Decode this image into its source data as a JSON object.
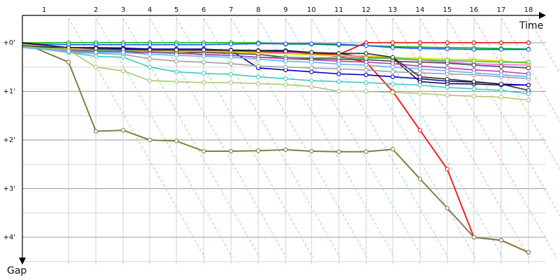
{
  "chart_data": {
    "type": "line",
    "xlabel": "Time",
    "ylabel": "Gap",
    "x_ticks": [
      "1",
      "2",
      "3",
      "4",
      "5",
      "6",
      "7",
      "8",
      "9",
      "10",
      "11",
      "12",
      "13",
      "14",
      "15",
      "16",
      "17",
      "18"
    ],
    "y_ticks": [
      "+0'",
      "+1'",
      "+2'",
      "+3'",
      "+4'"
    ],
    "grid": true,
    "legend": "none",
    "series": [
      {
        "color": "#e00000",
        "values": [
          0.0,
          0.15,
          0.18,
          0.18,
          0.18,
          0.18,
          0.18,
          0.18,
          0.18,
          0.2,
          0.22,
          0.24,
          0.0,
          0.0,
          0.0,
          0.0,
          0.0,
          0.0,
          0.0
        ]
      },
      {
        "color": "#ee2222",
        "values": [
          0.02,
          0.14,
          0.14,
          0.16,
          0.17,
          0.18,
          0.18,
          0.19,
          0.2,
          0.2,
          0.22,
          0.28,
          0.4,
          1.0,
          1.8,
          2.6,
          4.0,
          4.06,
          4.31
        ]
      },
      {
        "color": "#808040",
        "values": [
          0.0,
          0.4,
          1.82,
          1.8,
          2.0,
          2.02,
          2.23,
          2.23,
          2.22,
          2.2,
          2.23,
          2.24,
          2.24,
          2.19,
          2.8,
          3.4,
          4.0,
          4.06,
          4.31
        ]
      },
      {
        "color": "#00b000",
        "values": [
          0.0,
          0.0,
          0.0,
          0.0,
          0.0,
          0.0,
          0.0,
          0.0,
          0.0,
          0.03,
          0.03,
          0.05,
          0.06,
          0.08,
          0.09,
          0.1,
          0.11,
          0.12,
          0.13
        ]
      },
      {
        "color": "#1060ff",
        "values": [
          0.02,
          0.04,
          0.04,
          0.04,
          0.04,
          0.04,
          0.04,
          0.03,
          0.02,
          0.02,
          0.02,
          0.03,
          0.06,
          0.1,
          0.12,
          0.13,
          0.14,
          0.14,
          0.14
        ]
      },
      {
        "color": "#101040",
        "values": [
          0.0,
          0.1,
          0.1,
          0.11,
          0.13,
          0.14,
          0.14,
          0.15,
          0.16,
          0.16,
          0.2,
          0.22,
          0.3,
          0.32,
          0.8,
          0.84,
          0.85,
          0.87,
          0.87
        ]
      },
      {
        "color": "#0000c0",
        "values": [
          0.06,
          0.1,
          0.1,
          0.12,
          0.13,
          0.13,
          0.13,
          0.16,
          0.52,
          0.56,
          0.6,
          0.64,
          0.66,
          0.7,
          0.74,
          0.79,
          0.81,
          0.85,
          0.87
        ]
      },
      {
        "color": "#ff60ff",
        "values": [
          0.04,
          0.12,
          0.15,
          0.15,
          0.15,
          0.15,
          0.15,
          0.16,
          0.18,
          0.19,
          0.25,
          0.27,
          0.3,
          0.33,
          0.36,
          0.4,
          0.43,
          0.45,
          0.46
        ]
      },
      {
        "color": "#4a4a4a",
        "values": [
          0.05,
          0.16,
          0.19,
          0.2,
          0.2,
          0.21,
          0.2,
          0.22,
          0.24,
          0.3,
          0.33,
          0.34,
          0.35,
          0.38,
          0.4,
          0.42,
          0.46,
          0.49,
          0.52
        ]
      },
      {
        "color": "#dddd00",
        "values": [
          0.04,
          0.12,
          0.16,
          0.17,
          0.17,
          0.18,
          0.18,
          0.19,
          0.21,
          0.23,
          0.25,
          0.26,
          0.27,
          0.3,
          0.32,
          0.34,
          0.35,
          0.37,
          0.43
        ]
      },
      {
        "color": "#40c040",
        "values": [
          0.05,
          0.15,
          0.15,
          0.17,
          0.2,
          0.2,
          0.25,
          0.26,
          0.3,
          0.3,
          0.31,
          0.31,
          0.32,
          0.32,
          0.35,
          0.37,
          0.38,
          0.4,
          0.4
        ]
      },
      {
        "color": "#a0a0a0",
        "values": [
          0.05,
          0.2,
          0.22,
          0.24,
          0.33,
          0.38,
          0.4,
          0.43,
          0.48,
          0.5,
          0.52,
          0.54,
          0.56,
          0.6,
          0.62,
          0.64,
          0.66,
          0.7,
          0.74
        ]
      },
      {
        "color": "#b040b0",
        "values": [
          0.06,
          0.16,
          0.18,
          0.18,
          0.2,
          0.22,
          0.24,
          0.26,
          0.3,
          0.33,
          0.35,
          0.38,
          0.4,
          0.43,
          0.48,
          0.52,
          0.56,
          0.59,
          0.64
        ]
      },
      {
        "color": "#303030",
        "values": [
          0.07,
          0.1,
          0.12,
          0.14,
          0.15,
          0.15,
          0.15,
          0.16,
          0.17,
          0.18,
          0.2,
          0.22,
          0.22,
          0.3,
          0.7,
          0.75,
          0.8,
          0.85,
          0.98
        ]
      },
      {
        "color": "#40c8c8",
        "values": [
          0.08,
          0.2,
          0.28,
          0.3,
          0.5,
          0.6,
          0.63,
          0.65,
          0.7,
          0.74,
          0.78,
          0.8,
          0.82,
          0.85,
          0.87,
          0.92,
          0.95,
          0.98,
          1.05
        ]
      },
      {
        "color": "#a8c870",
        "values": [
          0.08,
          0.15,
          0.5,
          0.58,
          0.78,
          0.8,
          0.82,
          0.82,
          0.84,
          0.86,
          0.9,
          1.0,
          1.0,
          1.02,
          1.04,
          1.08,
          1.1,
          1.12,
          1.18
        ]
      },
      {
        "color": "#60b0ff",
        "values": [
          0.1,
          0.18,
          0.2,
          0.2,
          0.24,
          0.26,
          0.28,
          0.3,
          0.34,
          0.38,
          0.4,
          0.44,
          0.46,
          0.5,
          0.54,
          0.58,
          0.62,
          0.66,
          0.7
        ]
      }
    ]
  }
}
